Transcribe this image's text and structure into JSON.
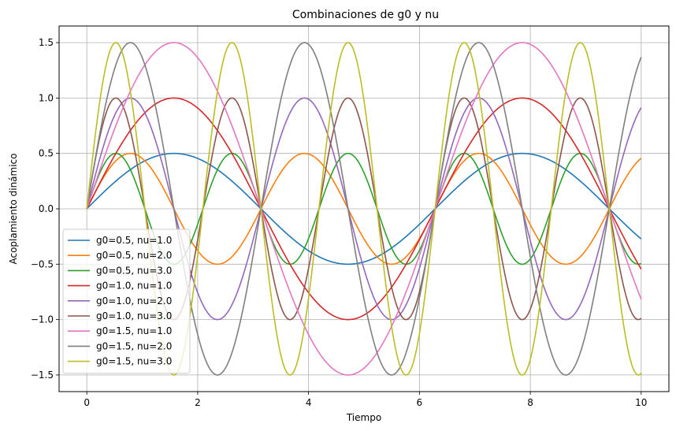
{
  "chart_data": {
    "type": "line",
    "title": "Combinaciones de g0 y nu",
    "xlabel": "Tiempo",
    "ylabel": "Acoplamiento dinámico",
    "xlim": [
      -0.5,
      10.5
    ],
    "ylim": [
      -1.65,
      1.65
    ],
    "x_range": [
      0,
      10
    ],
    "xticks": [
      0,
      2,
      4,
      6,
      8,
      10
    ],
    "xtick_labels": [
      "0",
      "2",
      "4",
      "6",
      "8",
      "10"
    ],
    "yticks": [
      1.5,
      1.0,
      0.5,
      0.0,
      -0.5,
      -1.0,
      -1.5
    ],
    "ytick_labels": [
      "1.5",
      "1.0",
      "0.5",
      "0.0",
      "−0.5",
      "−1.0",
      "−1.5"
    ],
    "grid": true,
    "legend_position": "lower-left",
    "formula": "y = g0 * sin(nu * t)",
    "series": [
      {
        "name": "g0=0.5, nu=1.0",
        "g0": 0.5,
        "nu": 1.0,
        "color": "#1f77b4"
      },
      {
        "name": "g0=0.5, nu=2.0",
        "g0": 0.5,
        "nu": 2.0,
        "color": "#ff7f0e"
      },
      {
        "name": "g0=0.5, nu=3.0",
        "g0": 0.5,
        "nu": 3.0,
        "color": "#2ca02c"
      },
      {
        "name": "g0=1.0, nu=1.0",
        "g0": 1.0,
        "nu": 1.0,
        "color": "#d62728"
      },
      {
        "name": "g0=1.0, nu=2.0",
        "g0": 1.0,
        "nu": 2.0,
        "color": "#9467bd"
      },
      {
        "name": "g0=1.0, nu=3.0",
        "g0": 1.0,
        "nu": 3.0,
        "color": "#8c564b"
      },
      {
        "name": "g0=1.5, nu=1.0",
        "g0": 1.5,
        "nu": 1.0,
        "color": "#e377c2"
      },
      {
        "name": "g0=1.5, nu=2.0",
        "g0": 1.5,
        "nu": 2.0,
        "color": "#7f7f7f"
      },
      {
        "name": "g0=1.5, nu=3.0",
        "g0": 1.5,
        "nu": 3.0,
        "color": "#bcbd22"
      }
    ]
  }
}
